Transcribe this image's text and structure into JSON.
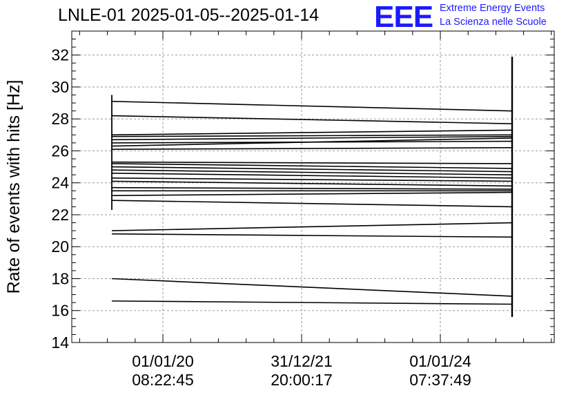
{
  "title": "LNLE-01 2025-01-05--2025-01-14",
  "logo": {
    "mark": "EEE",
    "line1": "Extreme Energy Events",
    "line2": "La Scienza nelle Scuole",
    "color": "#1a1aff"
  },
  "chart_data": {
    "type": "line",
    "title": "LNLE-01 2025-01-05--2025-01-14",
    "xlabel": "",
    "ylabel": "Rate of events with hits [Hz]",
    "ylim": [
      14,
      33.5
    ],
    "yticks": [
      14,
      16,
      18,
      20,
      22,
      24,
      26,
      28,
      30,
      32
    ],
    "xticks": [
      {
        "line1": "01/01/20",
        "line2": "08:22:45"
      },
      {
        "line1": "31/12/21",
        "line2": "20:00:17"
      },
      {
        "line1": "01/01/24",
        "line2": "07:37:49"
      }
    ],
    "grid": true,
    "segments": [
      {
        "y0": 29.1,
        "y1": 28.5
      },
      {
        "y0": 28.2,
        "y1": 27.7
      },
      {
        "y0": 27.0,
        "y1": 27.3
      },
      {
        "y0": 26.9,
        "y1": 27.0
      },
      {
        "y0": 26.7,
        "y1": 26.9
      },
      {
        "y0": 26.5,
        "y1": 26.6
      },
      {
        "y0": 26.3,
        "y1": 26.8
      },
      {
        "y0": 26.1,
        "y1": 26.2
      },
      {
        "y0": 25.3,
        "y1": 25.2
      },
      {
        "y0": 25.2,
        "y1": 24.9
      },
      {
        "y0": 25.0,
        "y1": 24.7
      },
      {
        "y0": 24.8,
        "y1": 24.5
      },
      {
        "y0": 24.6,
        "y1": 24.3
      },
      {
        "y0": 24.3,
        "y1": 24.1
      },
      {
        "y0": 24.1,
        "y1": 23.8
      },
      {
        "y0": 23.7,
        "y1": 23.6
      },
      {
        "y0": 23.5,
        "y1": 23.5
      },
      {
        "y0": 23.2,
        "y1": 23.4
      },
      {
        "y0": 22.9,
        "y1": 22.5
      },
      {
        "y0": 21.0,
        "y1": 21.5
      },
      {
        "y0": 20.8,
        "y1": 20.6
      },
      {
        "y0": 18.0,
        "y1": 16.9
      },
      {
        "y0": 16.6,
        "y1": 16.4
      }
    ],
    "left_bar": [
      22.3,
      29.5
    ],
    "right_bar": [
      15.6,
      31.9
    ]
  }
}
